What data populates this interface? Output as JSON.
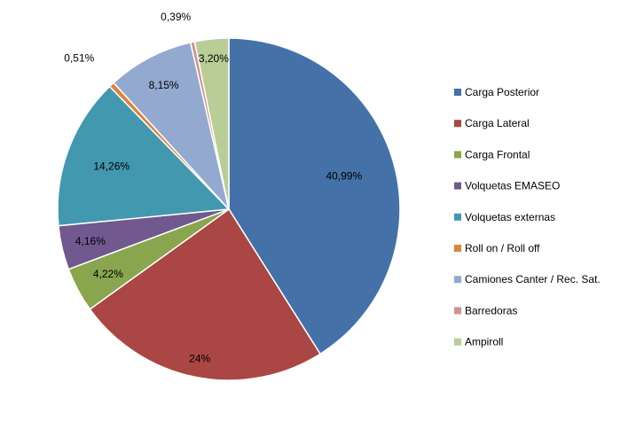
{
  "chart_data": {
    "type": "pie",
    "categories": [
      "Carga Posterior",
      "Carga Lateral",
      "Carga Frontal",
      "Volquetas EMASEO",
      "Volquetas externas",
      "Roll on / Roll off",
      "Camiones Canter / Rec. Sat.",
      "Barredoras",
      "Ampiroll"
    ],
    "values": [
      40.99,
      24,
      4.22,
      4.16,
      14.26,
      0.51,
      8.15,
      0.39,
      3.2
    ],
    "labels": [
      "40,99%",
      "24%",
      "4,22%",
      "4,16%",
      "14,26%",
      "0,51%",
      "8,15%",
      "0,39%",
      "3,20%"
    ],
    "colors": [
      "#4472A8",
      "#AA4643",
      "#89A54E",
      "#71588F",
      "#4198AF",
      "#DB843D",
      "#93A9CF",
      "#D19392",
      "#B9CD96"
    ],
    "start_angle_deg": 0,
    "direction": "clockwise",
    "legend_position": "right"
  }
}
